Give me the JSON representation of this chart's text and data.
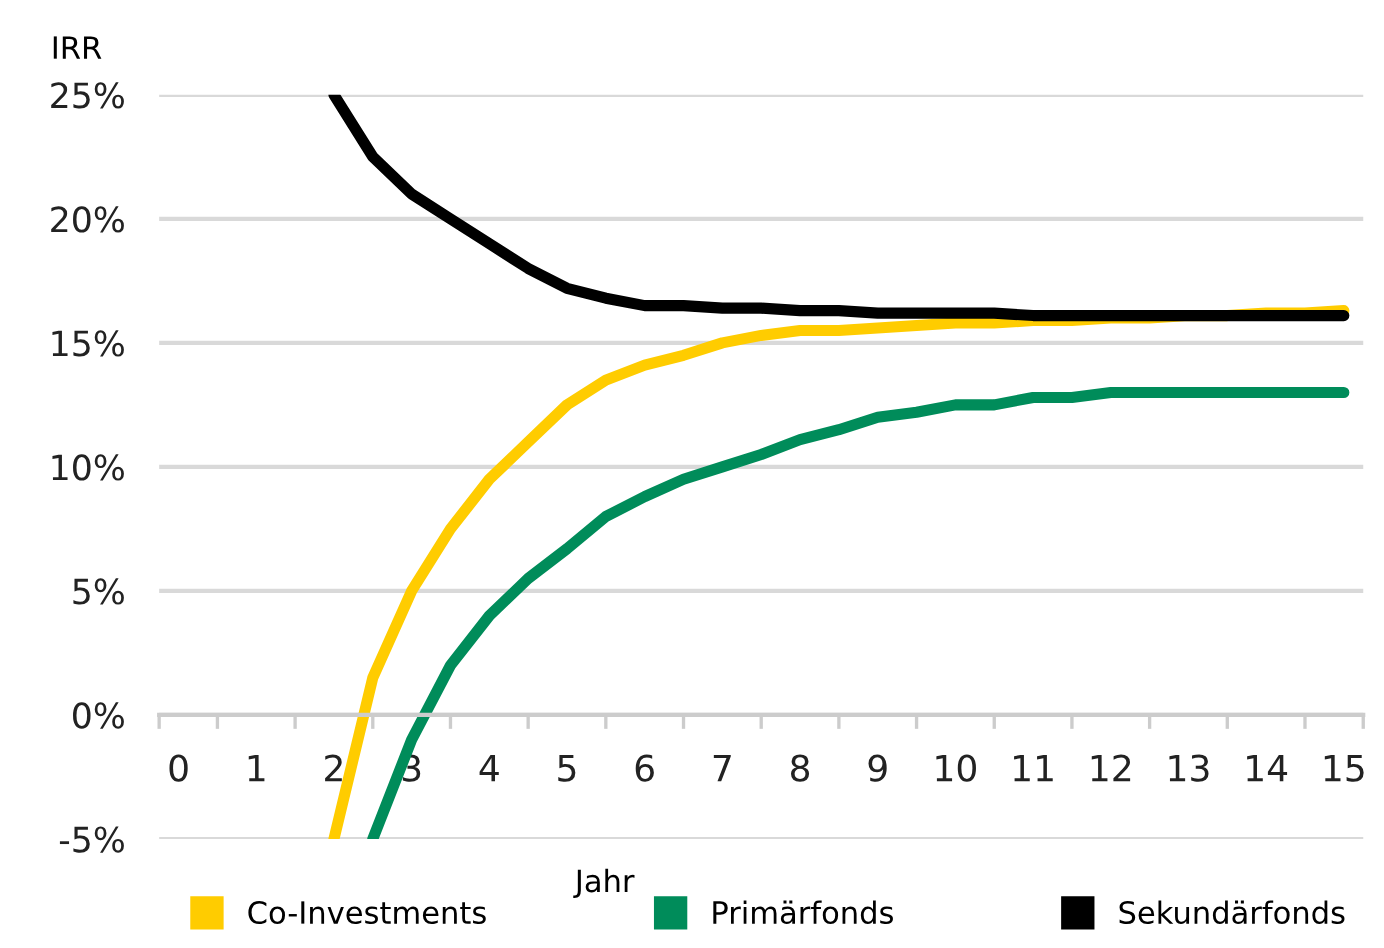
{
  "chart_data": {
    "type": "line",
    "xlabel": "Jahr",
    "ylabel": "IRR",
    "xlim": [
      -0.25,
      15.25
    ],
    "ylim": [
      -5,
      25
    ],
    "xticks": [
      0,
      1,
      2,
      3,
      4,
      5,
      6,
      7,
      8,
      9,
      10,
      11,
      12,
      13,
      14,
      15
    ],
    "yticks": [
      {
        "value": -5,
        "label": "-5%"
      },
      {
        "value": 0,
        "label": "0%"
      },
      {
        "value": 5,
        "label": "5%"
      },
      {
        "value": 10,
        "label": "10%"
      },
      {
        "value": 15,
        "label": "15%"
      },
      {
        "value": 20,
        "label": "20%"
      },
      {
        "value": 25,
        "label": "25%"
      }
    ],
    "grid": "y",
    "legend": "bottom",
    "marker": "none",
    "line_style": "solid",
    "series": [
      {
        "name": "Co-Investments",
        "color": "#ffcc00",
        "x": [
          2,
          2.5,
          3,
          3.5,
          4,
          4.5,
          5,
          5.5,
          6,
          6.5,
          7,
          7.5,
          8,
          8.5,
          9,
          9.5,
          10,
          10.5,
          11,
          11.5,
          12,
          12.5,
          13,
          13.5,
          14,
          14.5,
          15
        ],
        "values": [
          -5,
          1.5,
          5,
          7.5,
          9.5,
          11,
          12.5,
          13.5,
          14.1,
          14.5,
          15.0,
          15.3,
          15.5,
          15.5,
          15.6,
          15.7,
          15.8,
          15.8,
          15.9,
          15.9,
          16.0,
          16.0,
          16.1,
          16.1,
          16.2,
          16.2,
          16.3
        ]
      },
      {
        "name": "Primärfonds",
        "color": "#008c5a",
        "x": [
          2.5,
          3,
          3.5,
          4,
          4.5,
          5,
          5.5,
          6,
          6.5,
          7,
          7.5,
          8,
          8.5,
          9,
          9.5,
          10,
          10.5,
          11,
          11.5,
          12,
          12.5,
          13,
          13.5,
          14,
          14.5,
          15
        ],
        "values": [
          -5,
          -1.0,
          2,
          4,
          5.5,
          6.7,
          8,
          8.8,
          9.5,
          10.0,
          10.5,
          11.1,
          11.5,
          12.0,
          12.2,
          12.5,
          12.5,
          12.8,
          12.8,
          13,
          13,
          13,
          13,
          13,
          13,
          13
        ]
      },
      {
        "name": "Sekundärfonds",
        "color": "#000000",
        "x": [
          2,
          2.5,
          3,
          3.5,
          4,
          4.5,
          5,
          5.5,
          6,
          6.5,
          7,
          7.5,
          8,
          8.5,
          9,
          9.5,
          10,
          10.5,
          11,
          11.5,
          12,
          12.5,
          13,
          13.5,
          14,
          14.5,
          15
        ],
        "values": [
          25,
          22.5,
          21,
          20.0,
          19,
          18,
          17.2,
          16.8,
          16.5,
          16.5,
          16.4,
          16.4,
          16.3,
          16.3,
          16.2,
          16.2,
          16.2,
          16.2,
          16.1,
          16.1,
          16.1,
          16.1,
          16.1,
          16.1,
          16.1,
          16.1,
          16.1
        ]
      }
    ]
  }
}
